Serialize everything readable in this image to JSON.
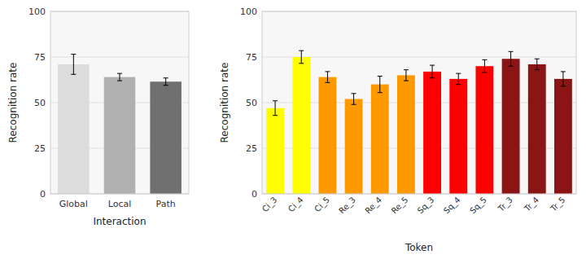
{
  "chart_data": [
    {
      "type": "bar",
      "xlabel": "Interaction",
      "ylabel": "Recognition rate",
      "categories": [
        "Global",
        "Local",
        "Path"
      ],
      "values": [
        71.0,
        64.0,
        61.5
      ],
      "errors": [
        5.5,
        2.0,
        2.0
      ],
      "colors": [
        "#dcdcdc",
        "#b0b0b0",
        "#707070"
      ],
      "ylim": [
        0,
        100
      ],
      "yticks": [
        0,
        25,
        50,
        75,
        100
      ],
      "grid": true
    },
    {
      "type": "bar",
      "xlabel": "Token",
      "ylabel": "Recognition rate",
      "categories": [
        "Ci_3",
        "Ci_4",
        "Ci_5",
        "Re_3",
        "Re_4",
        "Re_5",
        "Sq_3",
        "Sq_4",
        "Sq_5",
        "Tr_3",
        "Tr_4",
        "Tr_5"
      ],
      "values": [
        47.0,
        75.0,
        64.0,
        52.0,
        60.0,
        65.0,
        67.0,
        63.0,
        70.0,
        74.0,
        71.0,
        63.0
      ],
      "errors": [
        4.0,
        3.5,
        3.0,
        3.0,
        4.5,
        3.0,
        3.5,
        3.0,
        3.5,
        4.0,
        3.0,
        4.0
      ],
      "colors": [
        "#ffff00",
        "#ffff00",
        "#ff9900",
        "#ff9900",
        "#ff9900",
        "#ff9900",
        "#ff0000",
        "#ff0000",
        "#ff0000",
        "#8b1414",
        "#8b1414",
        "#8b1414"
      ],
      "ylim": [
        0,
        100
      ],
      "yticks": [
        0,
        25,
        50,
        75,
        100
      ],
      "grid": true
    }
  ]
}
